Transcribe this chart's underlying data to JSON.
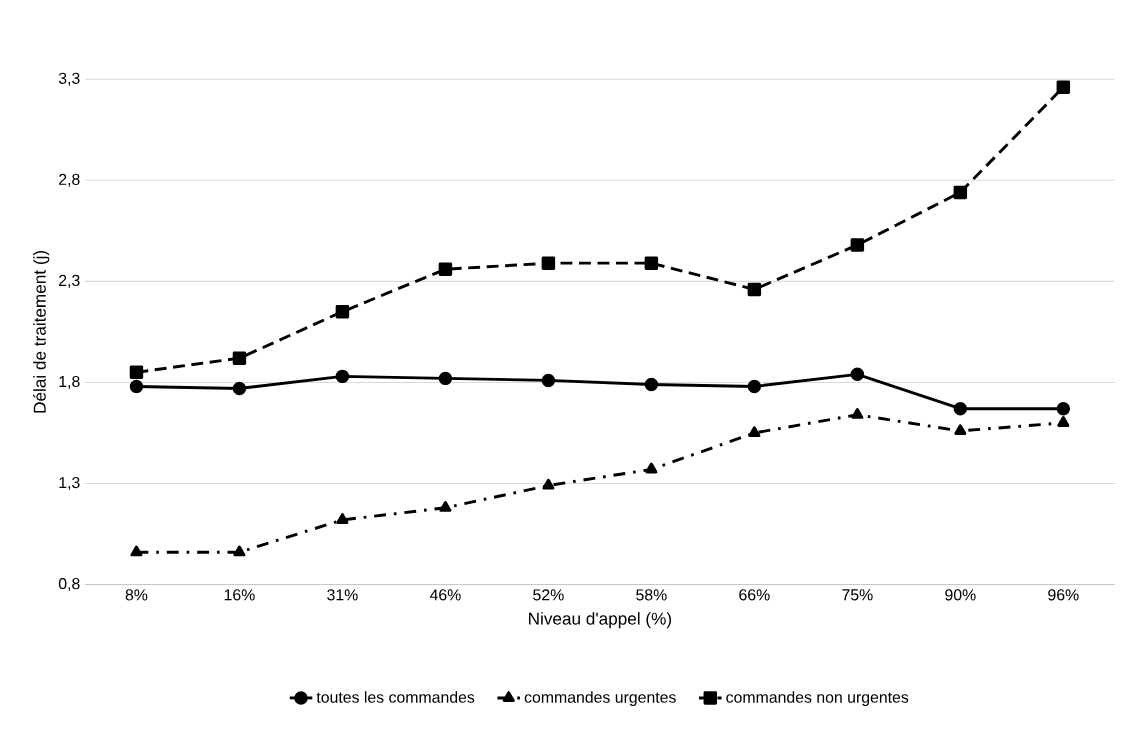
{
  "chart_data": {
    "type": "line",
    "xlabel": "Niveau d'appel (%)",
    "ylabel": "Délai de traitement (j)",
    "categories": [
      "8%",
      "16%",
      "31%",
      "46%",
      "52%",
      "58%",
      "66%",
      "75%",
      "90%",
      "96%"
    ],
    "series": [
      {
        "name": "toutes les  commandes",
        "color": "#000000",
        "marker": "circle",
        "line_style": "solid",
        "values": [
          1.78,
          1.77,
          1.83,
          1.82,
          1.81,
          1.79,
          1.78,
          1.84,
          1.67,
          1.67
        ]
      },
      {
        "name": "commandes urgentes",
        "color": "#000000",
        "marker": "triangle",
        "line_style": "dashdot",
        "values": [
          0.96,
          0.96,
          1.12,
          1.18,
          1.29,
          1.37,
          1.55,
          1.64,
          1.56,
          1.6
        ]
      },
      {
        "name": "commandes non urgentes",
        "color": "#000000",
        "marker": "square",
        "line_style": "dashed",
        "values": [
          1.85,
          1.92,
          2.15,
          2.36,
          2.39,
          2.39,
          2.26,
          2.48,
          2.74,
          3.26
        ]
      }
    ],
    "ylim": [
      0.8,
      3.3
    ],
    "yticks": [
      {
        "value": 0.8,
        "label": "0,8"
      },
      {
        "value": 1.3,
        "label": "1,3"
      },
      {
        "value": 1.8,
        "label": "1,8"
      },
      {
        "value": 2.3,
        "label": "2,3"
      },
      {
        "value": 2.8,
        "label": "2,8"
      },
      {
        "value": 3.3,
        "label": "3,3"
      }
    ],
    "grid": "y",
    "legend": "bottom"
  }
}
